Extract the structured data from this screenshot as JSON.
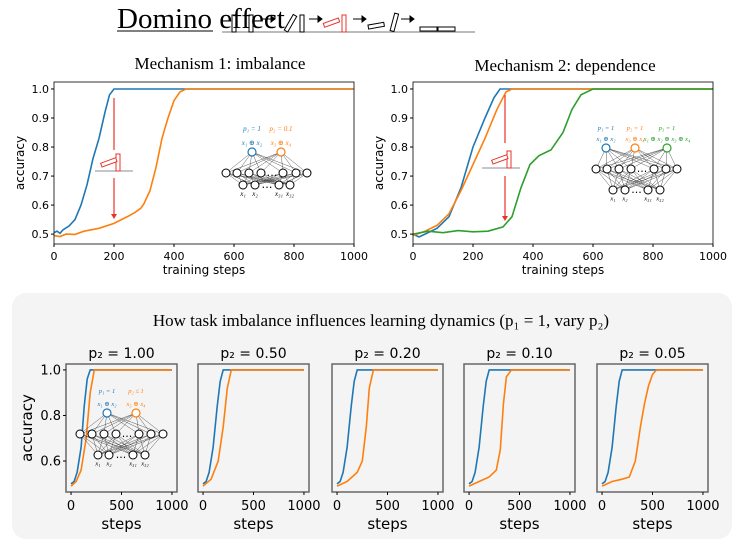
{
  "header": {
    "title": "Domino effect",
    "mechanism1_title": "Mechanism 1: imbalance",
    "mechanism2_title": "Mechanism 2: dependence"
  },
  "bottom_section": {
    "title": "How task imbalance influences learning dynamics (p₁ = 1, vary p₂)"
  },
  "colors": {
    "blue": "#1f77b4",
    "orange": "#ff7f0e",
    "green": "#2ca02c",
    "red": "#e8332a",
    "panel_bg": "#f4f4f4"
  },
  "networks": {
    "mech1": {
      "p_labels": [
        "p₁ = 1",
        "p₂ = 0.1"
      ],
      "tasks": [
        "x₁ ⊕ x₂",
        "x₃ ⊕ x₄"
      ],
      "inputs": [
        "x₁",
        "x₂",
        "x₃₁",
        "x₃₂"
      ],
      "dots": "…"
    },
    "mech2": {
      "p_labels": [
        "p₁ = 1",
        "p₂ = 1",
        "p₃ = 1"
      ],
      "tasks": [
        "x₁ ⊕ x₂",
        "x₃ ⊕ x₄",
        "x₁ ⊕ x₂ ⊕ x₃ ⊕ x₄"
      ],
      "inputs": [
        "x₁",
        "x₂",
        "x₃₁",
        "x₃₂"
      ],
      "dots": "…"
    },
    "bottom": {
      "p_labels": [
        "p₁ = 1",
        "p₂ ≤ 1"
      ],
      "tasks": [
        "x₁ ⊕ x₂",
        "x₃ ⊕ x₄"
      ],
      "inputs": [
        "x₁",
        "x₂",
        "x₃₁",
        "x₃₂"
      ],
      "dots": "…"
    }
  },
  "chart_data": [
    {
      "type": "line",
      "id": "mech1",
      "title": "Mechanism 1: imbalance",
      "xlabel": "training steps",
      "ylabel": "accuracy",
      "xlim": [
        0,
        1000
      ],
      "ylim": [
        0.466,
        1.024
      ],
      "xticks": [
        "0",
        "200",
        "400",
        "600",
        "800",
        "1000"
      ],
      "yticks": [
        "0.5",
        "0.6",
        "0.7",
        "0.8",
        "0.9",
        "1.0"
      ],
      "series": [
        {
          "color": "#1f77b4",
          "points": [
            [
              0,
              0.505
            ],
            [
              10,
              0.51
            ],
            [
              20,
              0.503
            ],
            [
              30,
              0.515
            ],
            [
              50,
              0.528
            ],
            [
              70,
              0.55
            ],
            [
              90,
              0.6
            ],
            [
              110,
              0.67
            ],
            [
              130,
              0.76
            ],
            [
              150,
              0.83
            ],
            [
              170,
              0.92
            ],
            [
              185,
              0.98
            ],
            [
              200,
              1.0
            ],
            [
              1000,
              1.0
            ]
          ]
        },
        {
          "color": "#ff7f0e",
          "points": [
            [
              0,
              0.495
            ],
            [
              20,
              0.492
            ],
            [
              40,
              0.5
            ],
            [
              70,
              0.499
            ],
            [
              100,
              0.51
            ],
            [
              150,
              0.52
            ],
            [
              200,
              0.537
            ],
            [
              250,
              0.563
            ],
            [
              270,
              0.575
            ],
            [
              290,
              0.59
            ],
            [
              300,
              0.605
            ],
            [
              320,
              0.65
            ],
            [
              340,
              0.73
            ],
            [
              360,
              0.83
            ],
            [
              380,
              0.9
            ],
            [
              400,
              0.96
            ],
            [
              420,
              0.99
            ],
            [
              440,
              1.0
            ],
            [
              1000,
              1.0
            ]
          ]
        }
      ]
    },
    {
      "type": "line",
      "id": "mech2",
      "title": "Mechanism 2: dependence",
      "xlabel": "training steps",
      "ylabel": "accuracy",
      "xlim": [
        0,
        1000
      ],
      "ylim": [
        0.466,
        1.024
      ],
      "xticks": [
        "0",
        "200",
        "400",
        "600",
        "800",
        "1000"
      ],
      "yticks": [
        "0.5",
        "0.6",
        "0.7",
        "0.8",
        "0.9",
        "1.0"
      ],
      "series": [
        {
          "color": "#1f77b4",
          "points": [
            [
              0,
              0.5
            ],
            [
              20,
              0.49
            ],
            [
              40,
              0.5
            ],
            [
              80,
              0.52
            ],
            [
              120,
              0.56
            ],
            [
              160,
              0.66
            ],
            [
              200,
              0.8
            ],
            [
              240,
              0.9
            ],
            [
              270,
              0.97
            ],
            [
              290,
              1.0
            ],
            [
              1000,
              1.0
            ]
          ]
        },
        {
          "color": "#ff7f0e",
          "points": [
            [
              0,
              0.495
            ],
            [
              40,
              0.51
            ],
            [
              80,
              0.53
            ],
            [
              120,
              0.57
            ],
            [
              160,
              0.65
            ],
            [
              200,
              0.74
            ],
            [
              240,
              0.83
            ],
            [
              280,
              0.93
            ],
            [
              310,
              0.99
            ],
            [
              330,
              1.0
            ],
            [
              1000,
              1.0
            ]
          ]
        },
        {
          "color": "#2ca02c",
          "points": [
            [
              0,
              0.5
            ],
            [
              50,
              0.51
            ],
            [
              100,
              0.505
            ],
            [
              150,
              0.512
            ],
            [
              200,
              0.508
            ],
            [
              250,
              0.51
            ],
            [
              300,
              0.525
            ],
            [
              330,
              0.56
            ],
            [
              360,
              0.66
            ],
            [
              390,
              0.74
            ],
            [
              420,
              0.77
            ],
            [
              460,
              0.79
            ],
            [
              500,
              0.85
            ],
            [
              530,
              0.93
            ],
            [
              560,
              0.98
            ],
            [
              600,
              1.0
            ],
            [
              1000,
              1.0
            ]
          ]
        }
      ]
    },
    {
      "type": "line",
      "id": "p100",
      "title": "p₂ = 1.00",
      "xlabel": "steps",
      "ylabel": "accuracy",
      "xlim": [
        -50,
        1050
      ],
      "ylim": [
        0.464,
        1.026
      ],
      "xticks": [
        "0",
        "500",
        "1000"
      ],
      "yticks": [
        "0.6",
        "0.8",
        "1.0"
      ],
      "series": [
        {
          "color": "#1f77b4",
          "points": [
            [
              0,
              0.5
            ],
            [
              30,
              0.51
            ],
            [
              60,
              0.55
            ],
            [
              100,
              0.66
            ],
            [
              130,
              0.84
            ],
            [
              160,
              0.96
            ],
            [
              190,
              1.0
            ],
            [
              1000,
              1.0
            ]
          ]
        },
        {
          "color": "#ff7f0e",
          "points": [
            [
              0,
              0.49
            ],
            [
              50,
              0.51
            ],
            [
              100,
              0.56
            ],
            [
              150,
              0.7
            ],
            [
              190,
              0.9
            ],
            [
              230,
              1.0
            ],
            [
              1000,
              1.0
            ]
          ]
        }
      ]
    },
    {
      "type": "line",
      "id": "p050",
      "title": "p₂ = 0.50",
      "xlabel": "steps",
      "xlim": [
        -50,
        1050
      ],
      "ylim": [
        0.464,
        1.026
      ],
      "xticks": [
        "0",
        "500",
        "1000"
      ],
      "series": [
        {
          "color": "#1f77b4",
          "points": [
            [
              0,
              0.5
            ],
            [
              30,
              0.51
            ],
            [
              60,
              0.55
            ],
            [
              100,
              0.66
            ],
            [
              140,
              0.84
            ],
            [
              170,
              0.95
            ],
            [
              200,
              1.0
            ],
            [
              1000,
              1.0
            ]
          ]
        },
        {
          "color": "#ff7f0e",
          "points": [
            [
              0,
              0.49
            ],
            [
              80,
              0.52
            ],
            [
              150,
              0.6
            ],
            [
              200,
              0.75
            ],
            [
              240,
              0.92
            ],
            [
              280,
              1.0
            ],
            [
              1000,
              1.0
            ]
          ]
        }
      ]
    },
    {
      "type": "line",
      "id": "p020",
      "title": "p₂ = 0.20",
      "xlabel": "steps",
      "xlim": [
        -50,
        1050
      ],
      "ylim": [
        0.464,
        1.026
      ],
      "xticks": [
        "0",
        "500",
        "1000"
      ],
      "series": [
        {
          "color": "#1f77b4",
          "points": [
            [
              0,
              0.5
            ],
            [
              30,
              0.51
            ],
            [
              60,
              0.55
            ],
            [
              100,
              0.66
            ],
            [
              140,
              0.84
            ],
            [
              170,
              0.95
            ],
            [
              200,
              1.0
            ],
            [
              1000,
              1.0
            ]
          ]
        },
        {
          "color": "#ff7f0e",
          "points": [
            [
              0,
              0.49
            ],
            [
              100,
              0.51
            ],
            [
              200,
              0.55
            ],
            [
              250,
              0.6
            ],
            [
              290,
              0.75
            ],
            [
              320,
              0.92
            ],
            [
              360,
              1.0
            ],
            [
              1000,
              1.0
            ]
          ]
        }
      ]
    },
    {
      "type": "line",
      "id": "p010",
      "title": "p₂ = 0.10",
      "xlabel": "steps",
      "xlim": [
        -50,
        1050
      ],
      "ylim": [
        0.464,
        1.026
      ],
      "xticks": [
        "0",
        "500",
        "1000"
      ],
      "series": [
        {
          "color": "#1f77b4",
          "points": [
            [
              0,
              0.5
            ],
            [
              30,
              0.51
            ],
            [
              60,
              0.55
            ],
            [
              100,
              0.66
            ],
            [
              140,
              0.84
            ],
            [
              170,
              0.95
            ],
            [
              200,
              1.0
            ],
            [
              1000,
              1.0
            ]
          ]
        },
        {
          "color": "#ff7f0e",
          "points": [
            [
              0,
              0.49
            ],
            [
              100,
              0.51
            ],
            [
              200,
              0.53
            ],
            [
              270,
              0.56
            ],
            [
              310,
              0.65
            ],
            [
              340,
              0.85
            ],
            [
              370,
              0.97
            ],
            [
              420,
              1.0
            ],
            [
              1000,
              1.0
            ]
          ]
        }
      ]
    },
    {
      "type": "line",
      "id": "p005",
      "title": "p₂ = 0.05",
      "xlabel": "steps",
      "xlim": [
        -50,
        1050
      ],
      "ylim": [
        0.464,
        1.026
      ],
      "xticks": [
        "0",
        "500",
        "1000"
      ],
      "series": [
        {
          "color": "#1f77b4",
          "points": [
            [
              0,
              0.5
            ],
            [
              30,
              0.51
            ],
            [
              60,
              0.55
            ],
            [
              100,
              0.66
            ],
            [
              140,
              0.84
            ],
            [
              170,
              0.95
            ],
            [
              200,
              1.0
            ],
            [
              1000,
              1.0
            ]
          ]
        },
        {
          "color": "#ff7f0e",
          "points": [
            [
              0,
              0.49
            ],
            [
              100,
              0.51
            ],
            [
              200,
              0.52
            ],
            [
              270,
              0.53
            ],
            [
              330,
              0.6
            ],
            [
              380,
              0.75
            ],
            [
              420,
              0.85
            ],
            [
              460,
              0.93
            ],
            [
              500,
              0.98
            ],
            [
              540,
              1.0
            ],
            [
              1000,
              1.0
            ]
          ]
        }
      ]
    }
  ]
}
